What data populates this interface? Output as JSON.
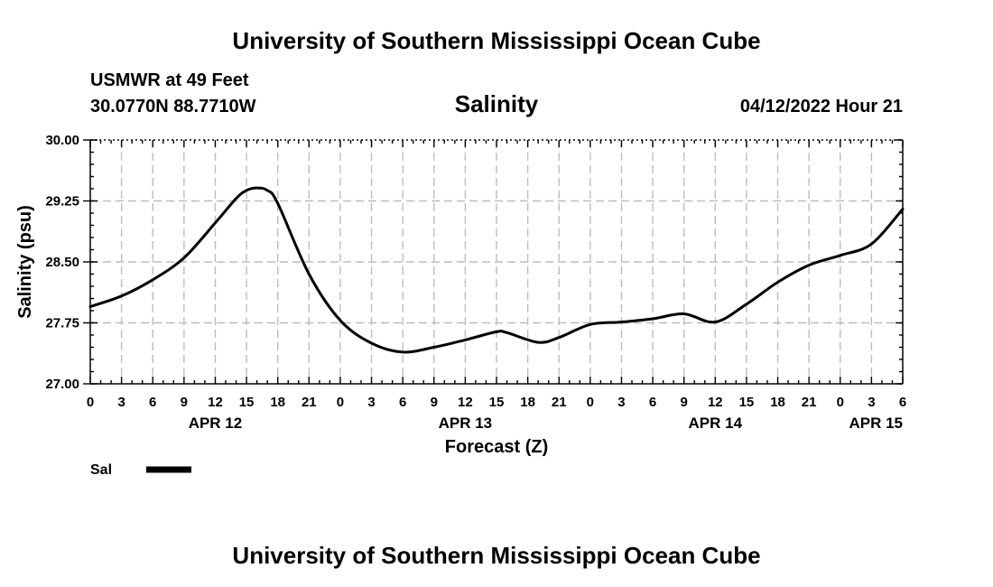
{
  "header": {
    "title": "University of Southern Mississippi Ocean Cube",
    "station": "USMWR at 49 Feet",
    "location": "30.0770N  88.7710W",
    "datetime": "04/12/2022 Hour 21",
    "footer_title": "University of Southern Mississippi Ocean Cube"
  },
  "chart_data": {
    "type": "line",
    "title": "Salinity",
    "xlabel": "Forecast (Z)",
    "ylabel": "Salinity (psu)",
    "ylim": [
      27.0,
      30.0
    ],
    "yticks": [
      "27.00",
      "27.75",
      "28.50",
      "29.25",
      "30.00"
    ],
    "xlim": [
      "04/12 00Z",
      "04/15 06Z"
    ],
    "xtick_labels": [
      "0",
      "3",
      "6",
      "9",
      "12",
      "15",
      "18",
      "21",
      "0",
      "3",
      "6",
      "9",
      "12",
      "15",
      "18",
      "21",
      "0",
      "3",
      "6",
      "9",
      "12",
      "15",
      "18",
      "21",
      "0",
      "3",
      "6"
    ],
    "day_labels": [
      "APR 12",
      "APR 13",
      "APR 14",
      "APR 15"
    ],
    "grid": true,
    "legend": {
      "placement": "bottom-left",
      "entries": [
        {
          "label": "Sal",
          "color": "#000000"
        }
      ]
    },
    "series": [
      {
        "name": "Sal",
        "color": "#000000",
        "points": [
          [
            "04/12 00Z",
            27.95
          ],
          [
            "04/12 03Z",
            28.08
          ],
          [
            "04/12 06Z",
            28.28
          ],
          [
            "04/12 09Z",
            28.55
          ],
          [
            "04/12 12Z",
            28.98
          ],
          [
            "04/12 14Z",
            29.28
          ],
          [
            "04/12 15Z",
            29.38
          ],
          [
            "04/12 16Z",
            29.41
          ],
          [
            "04/12 17Z",
            29.38
          ],
          [
            "04/12 18Z",
            29.22
          ],
          [
            "04/12 21Z",
            28.35
          ],
          [
            "04/13 00Z",
            27.78
          ],
          [
            "04/13 03Z",
            27.5
          ],
          [
            "04/13 06Z",
            27.39
          ],
          [
            "04/13 09Z",
            27.45
          ],
          [
            "04/13 12Z",
            27.54
          ],
          [
            "04/13 15Z",
            27.64
          ],
          [
            "04/13 16Z",
            27.63
          ],
          [
            "04/13 19Z",
            27.51
          ],
          [
            "04/13 21Z",
            27.57
          ],
          [
            "04/14 00Z",
            27.73
          ],
          [
            "04/14 03Z",
            27.76
          ],
          [
            "04/14 06Z",
            27.8
          ],
          [
            "04/14 09Z",
            27.86
          ],
          [
            "04/14 12Z",
            27.76
          ],
          [
            "04/14 15Z",
            27.98
          ],
          [
            "04/14 18Z",
            28.25
          ],
          [
            "04/14 21Z",
            28.46
          ],
          [
            "04/15 00Z",
            28.58
          ],
          [
            "04/15 03Z",
            28.72
          ],
          [
            "04/15 06Z",
            29.15
          ]
        ]
      }
    ]
  }
}
